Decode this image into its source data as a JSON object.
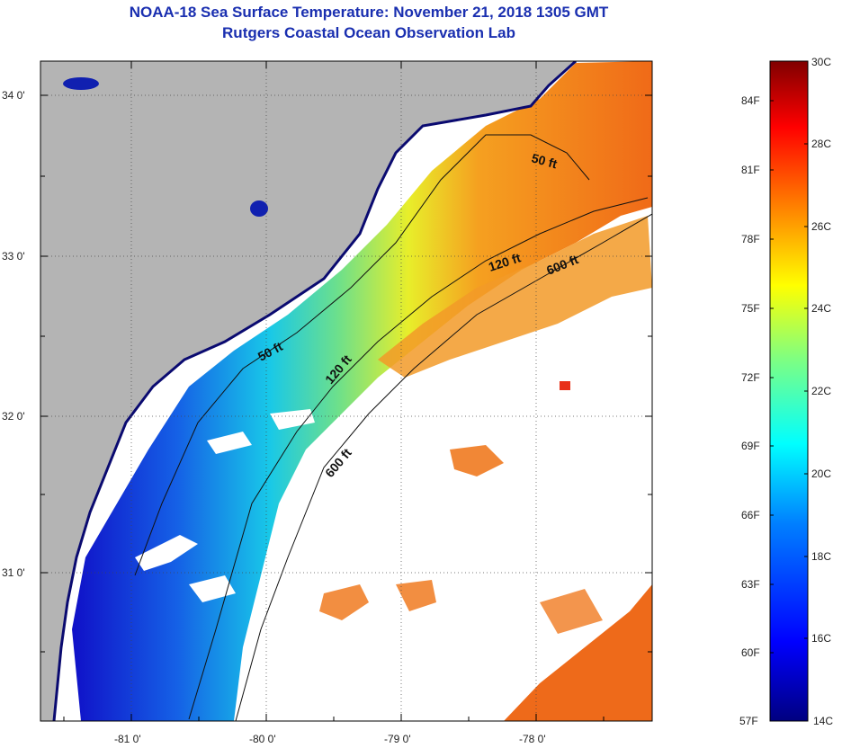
{
  "title": "NOAA-18 Sea Surface Temperature:  November 21, 2018 1305 GMT",
  "subtitle": "Rutgers Coastal Ocean Observation Lab",
  "lat_ticks": [
    "34 0'",
    "33 0'",
    "32 0'",
    "31 0'"
  ],
  "lon_ticks": [
    "-81 0'",
    "-80 0'",
    "-79 0'",
    "-78 0'"
  ],
  "contours": [
    "50 ft",
    "120 ft",
    "600 ft",
    "50 ft",
    "120 ft",
    "600 ft"
  ],
  "colorbar": {
    "celsius": [
      "30C",
      "28C",
      "26C",
      "24C",
      "22C",
      "20C",
      "18C",
      "16C",
      "14C"
    ],
    "fahrenheit": [
      "84F",
      "81F",
      "78F",
      "75F",
      "72F",
      "69F",
      "66F",
      "63F",
      "60F",
      "57F"
    ]
  },
  "colors": {
    "land": "#b4b4b4",
    "title": "#1a2fb0",
    "cloud": "#ffffff"
  }
}
